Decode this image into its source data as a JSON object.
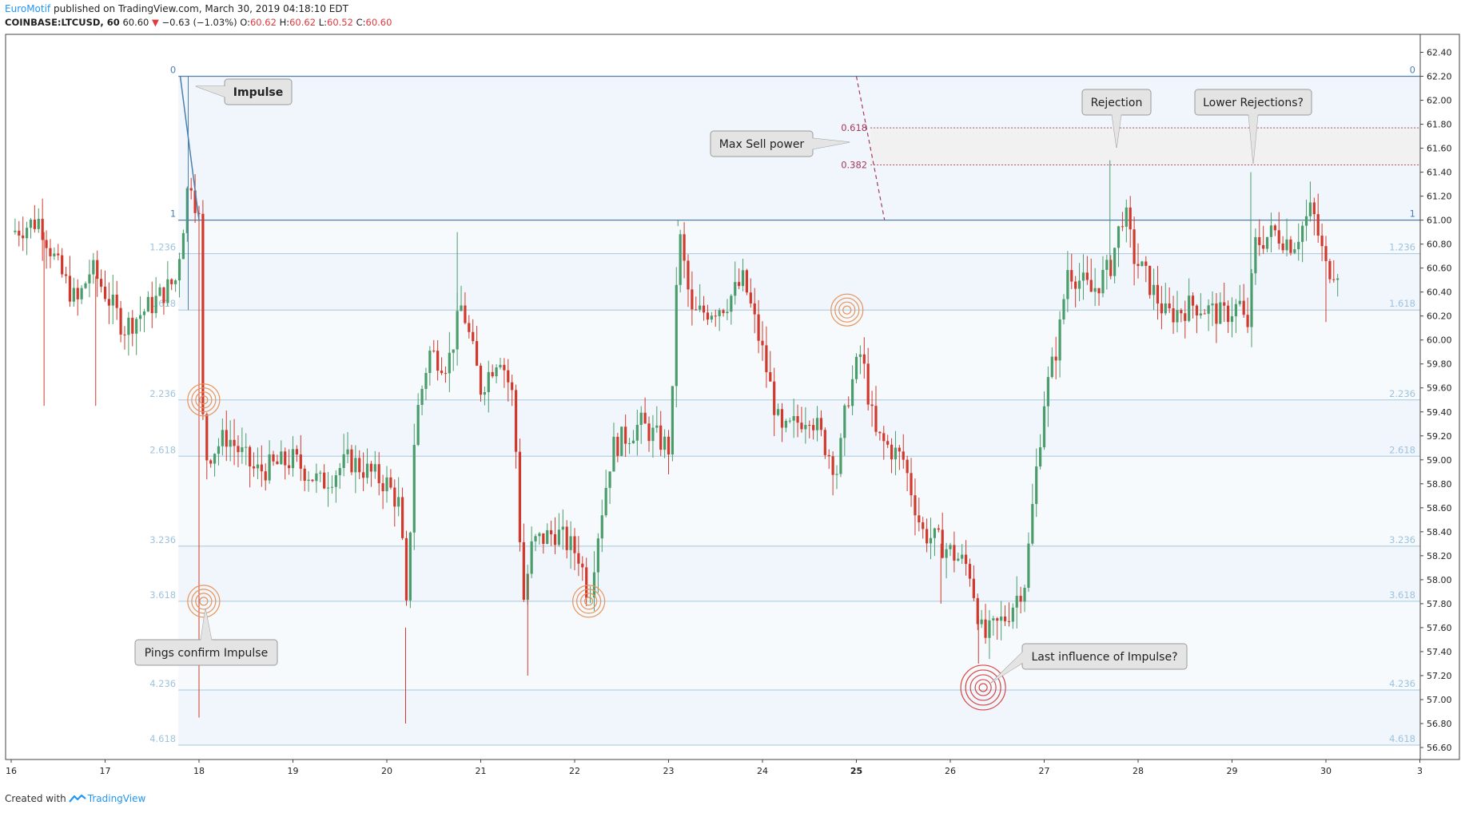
{
  "header": {
    "author": "EuroMotif",
    "published_text": "published on TradingView.com, March 30, 2019 04:18:10 EDT",
    "symbol": "COINBASE:LTCUSD, 60",
    "last": "60.60",
    "arrow": "▼",
    "change": "−0.63 (−1.03%)",
    "o_label": "O:",
    "o_value": "60.62",
    "h_label": "H:",
    "h_value": "60.62",
    "l_label": "L:",
    "l_value": "60.52",
    "c_label": "C:",
    "c_value": "60.60"
  },
  "footer": {
    "created_with": "Created with",
    "brand": "TradingView"
  },
  "colors": {
    "up": "#4a9d6a",
    "down": "#d0392c",
    "fib_main": "#4c7fb0",
    "fib_level": "#a8c8dc",
    "fib_label": "#9ec3dd",
    "fib_fill": "#eef5fb",
    "zone_line": "#a63a5c",
    "ping": "#e8935a",
    "ping_red": "#d94545"
  },
  "chart_data": {
    "type": "candlestick",
    "symbol": "COINBASE:LTCUSD",
    "interval": "60",
    "ylim": [
      56.5,
      62.55
    ],
    "y_ticks": [
      "62.40",
      "62.20",
      "62.00",
      "61.80",
      "61.60",
      "61.40",
      "61.20",
      "61.00",
      "60.80",
      "60.60",
      "60.40",
      "60.20",
      "60.00",
      "59.80",
      "59.60",
      "59.40",
      "59.20",
      "59.00",
      "58.80",
      "58.60",
      "58.40",
      "58.20",
      "58.00",
      "57.80",
      "57.60",
      "57.40",
      "57.20",
      "57.00",
      "56.80",
      "56.60"
    ],
    "x_labels": [
      "16",
      "17",
      "18",
      "19",
      "20",
      "21",
      "22",
      "23",
      "24",
      "25",
      "26",
      "27",
      "28",
      "29",
      "30",
      "3"
    ],
    "x_label_pos": [
      0,
      1,
      2,
      3,
      4,
      5,
      6,
      7,
      8,
      9,
      10,
      11,
      12,
      13,
      14,
      15
    ],
    "x_bold": [
      "25"
    ],
    "price_path": [
      [
        0.0,
        60.9
      ],
      [
        0.3,
        61.0
      ],
      [
        0.5,
        60.6
      ],
      [
        0.7,
        60.3
      ],
      [
        0.85,
        60.6
      ],
      [
        1.0,
        60.4
      ],
      [
        1.2,
        60.1
      ],
      [
        1.5,
        60.3
      ],
      [
        1.75,
        60.5
      ],
      [
        1.83,
        60.95
      ],
      [
        1.9,
        61.4
      ],
      [
        2.0,
        61.0
      ],
      [
        2.05,
        59.0
      ],
      [
        2.3,
        59.2
      ],
      [
        2.6,
        58.9
      ],
      [
        3.0,
        59.0
      ],
      [
        3.3,
        58.8
      ],
      [
        3.6,
        59.0
      ],
      [
        4.0,
        58.8
      ],
      [
        4.15,
        58.6
      ],
      [
        4.2,
        57.6
      ],
      [
        4.3,
        59.3
      ],
      [
        4.45,
        59.9
      ],
      [
        4.65,
        59.8
      ],
      [
        4.8,
        60.3
      ],
      [
        5.0,
        59.6
      ],
      [
        5.2,
        59.9
      ],
      [
        5.35,
        59.5
      ],
      [
        5.45,
        57.8
      ],
      [
        5.55,
        58.3
      ],
      [
        5.8,
        58.4
      ],
      [
        6.05,
        58.2
      ],
      [
        6.15,
        57.85
      ],
      [
        6.25,
        58.4
      ],
      [
        6.4,
        59.1
      ],
      [
        6.7,
        59.3
      ],
      [
        7.0,
        59.1
      ],
      [
        7.05,
        59.6
      ],
      [
        7.1,
        60.95
      ],
      [
        7.25,
        60.2
      ],
      [
        7.6,
        60.3
      ],
      [
        7.8,
        60.5
      ],
      [
        8.0,
        59.9
      ],
      [
        8.2,
        59.2
      ],
      [
        8.5,
        59.4
      ],
      [
        8.8,
        58.9
      ],
      [
        8.9,
        59.5
      ],
      [
        9.05,
        59.9
      ],
      [
        9.2,
        59.2
      ],
      [
        9.5,
        59.0
      ],
      [
        9.7,
        58.4
      ],
      [
        9.9,
        58.3
      ],
      [
        10.2,
        58.1
      ],
      [
        10.35,
        57.5
      ],
      [
        10.6,
        57.7
      ],
      [
        10.8,
        58.0
      ],
      [
        10.9,
        58.8
      ],
      [
        11.0,
        59.5
      ],
      [
        11.15,
        60.0
      ],
      [
        11.25,
        60.6
      ],
      [
        11.5,
        60.4
      ],
      [
        11.7,
        60.6
      ],
      [
        11.85,
        61.1
      ],
      [
        11.95,
        60.7
      ],
      [
        12.1,
        60.5
      ],
      [
        12.3,
        60.2
      ],
      [
        12.6,
        60.3
      ],
      [
        12.9,
        60.2
      ],
      [
        13.1,
        60.3
      ],
      [
        13.15,
        60.0
      ],
      [
        13.25,
        60.8
      ],
      [
        13.45,
        60.9
      ],
      [
        13.65,
        60.8
      ],
      [
        13.85,
        61.1
      ],
      [
        14.0,
        60.6
      ],
      [
        14.15,
        60.6
      ]
    ],
    "spikes": [
      [
        2.0,
        56.85,
        0
      ],
      [
        4.75,
        60.9,
        1
      ],
      [
        4.2,
        56.8,
        0
      ],
      [
        5.5,
        57.2,
        0
      ],
      [
        10.3,
        57.3,
        0
      ],
      [
        11.7,
        61.5,
        1
      ],
      [
        13.2,
        61.4,
        1
      ],
      [
        14.0,
        60.15,
        0
      ],
      [
        0.35,
        59.45,
        0
      ],
      [
        0.9,
        59.45,
        0
      ],
      [
        7.1,
        61.0,
        1
      ],
      [
        9.9,
        57.8,
        0
      ]
    ],
    "fib": {
      "levels": [
        "0",
        "1",
        "1.236",
        "1.618",
        "2.236",
        "2.618",
        "3.236",
        "3.618",
        "4.236",
        "4.618"
      ],
      "prices": [
        62.2,
        61.0,
        60.72,
        60.25,
        59.5,
        59.03,
        58.28,
        57.82,
        57.08,
        56.62
      ]
    },
    "sell_zone": {
      "labels": [
        "0.618",
        "0.382"
      ],
      "prices": [
        61.77,
        61.46
      ]
    },
    "impulse_line": [
      [
        1.8,
        62.2
      ],
      [
        2.0,
        61.0
      ]
    ],
    "dashed_line": [
      [
        9.0,
        62.2
      ],
      [
        9.3,
        61.0
      ]
    ],
    "pings": [
      [
        2.05,
        59.5,
        0
      ],
      [
        2.05,
        57.82,
        0
      ],
      [
        6.15,
        57.82,
        0
      ],
      [
        8.9,
        60.25,
        0
      ],
      [
        10.35,
        57.1,
        1
      ]
    ],
    "annotations": [
      {
        "text": "Impulse",
        "bold": true
      },
      {
        "text": "Pings confirm Impulse",
        "bold": false
      },
      {
        "text": "Max Sell power",
        "bold": false
      },
      {
        "text": "Rejection",
        "bold": false
      },
      {
        "text": "Lower Rejections?",
        "bold": false
      },
      {
        "text": "Last influence of Impulse?",
        "bold": false
      }
    ]
  }
}
